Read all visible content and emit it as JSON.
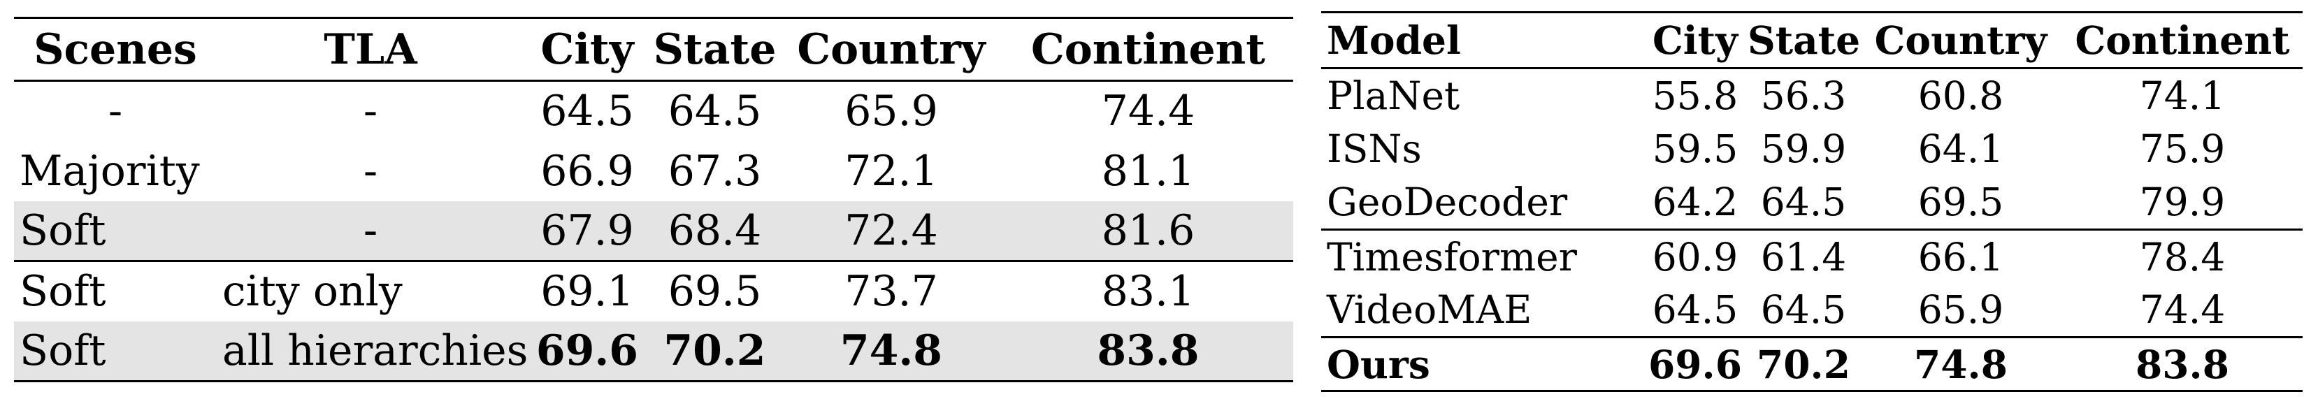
{
  "ablation_table": {
    "headers": [
      "Scenes",
      "TLA",
      "City",
      "State",
      "Country",
      "Continent"
    ],
    "rows": [
      {
        "scenes": "-",
        "tla": "-",
        "city": "64.5",
        "state": "64.5",
        "country": "65.9",
        "continent": "74.4"
      },
      {
        "scenes": "Majority",
        "tla": "-",
        "city": "66.9",
        "state": "67.3",
        "country": "72.1",
        "continent": "81.1"
      },
      {
        "scenes": "Soft",
        "tla": "-",
        "city": "67.9",
        "state": "68.4",
        "country": "72.4",
        "continent": "81.6"
      },
      {
        "scenes": "Soft",
        "tla": "city only",
        "city": "69.1",
        "state": "69.5",
        "country": "73.7",
        "continent": "83.1"
      },
      {
        "scenes": "Soft",
        "tla": "all hierarchies",
        "city": "69.6",
        "state": "70.2",
        "country": "74.8",
        "continent": "83.8"
      }
    ],
    "shaded_rows": [
      2,
      4
    ],
    "bold_rows": [
      4
    ]
  },
  "comparison_table": {
    "headers": [
      "Model",
      "City",
      "State",
      "Country",
      "Continent"
    ],
    "rows": [
      {
        "model": "PlaNet",
        "city": "55.8",
        "state": "56.3",
        "country": "60.8",
        "continent": "74.1"
      },
      {
        "model": "ISNs",
        "city": "59.5",
        "state": "59.9",
        "country": "64.1",
        "continent": "75.9"
      },
      {
        "model": "GeoDecoder",
        "city": "64.2",
        "state": "64.5",
        "country": "69.5",
        "continent": "79.9"
      },
      {
        "model": "Timesformer",
        "city": "60.9",
        "state": "61.4",
        "country": "66.1",
        "continent": "78.4"
      },
      {
        "model": "VideoMAE",
        "city": "64.5",
        "state": "64.5",
        "country": "65.9",
        "continent": "74.4"
      },
      {
        "model": "Ours",
        "city": "69.6",
        "state": "70.2",
        "country": "74.8",
        "continent": "83.8"
      }
    ],
    "bold_rows": [
      5
    ]
  },
  "colors": {
    "shade": "#e4e4e4",
    "rule": "#000000",
    "text": "#000000"
  }
}
